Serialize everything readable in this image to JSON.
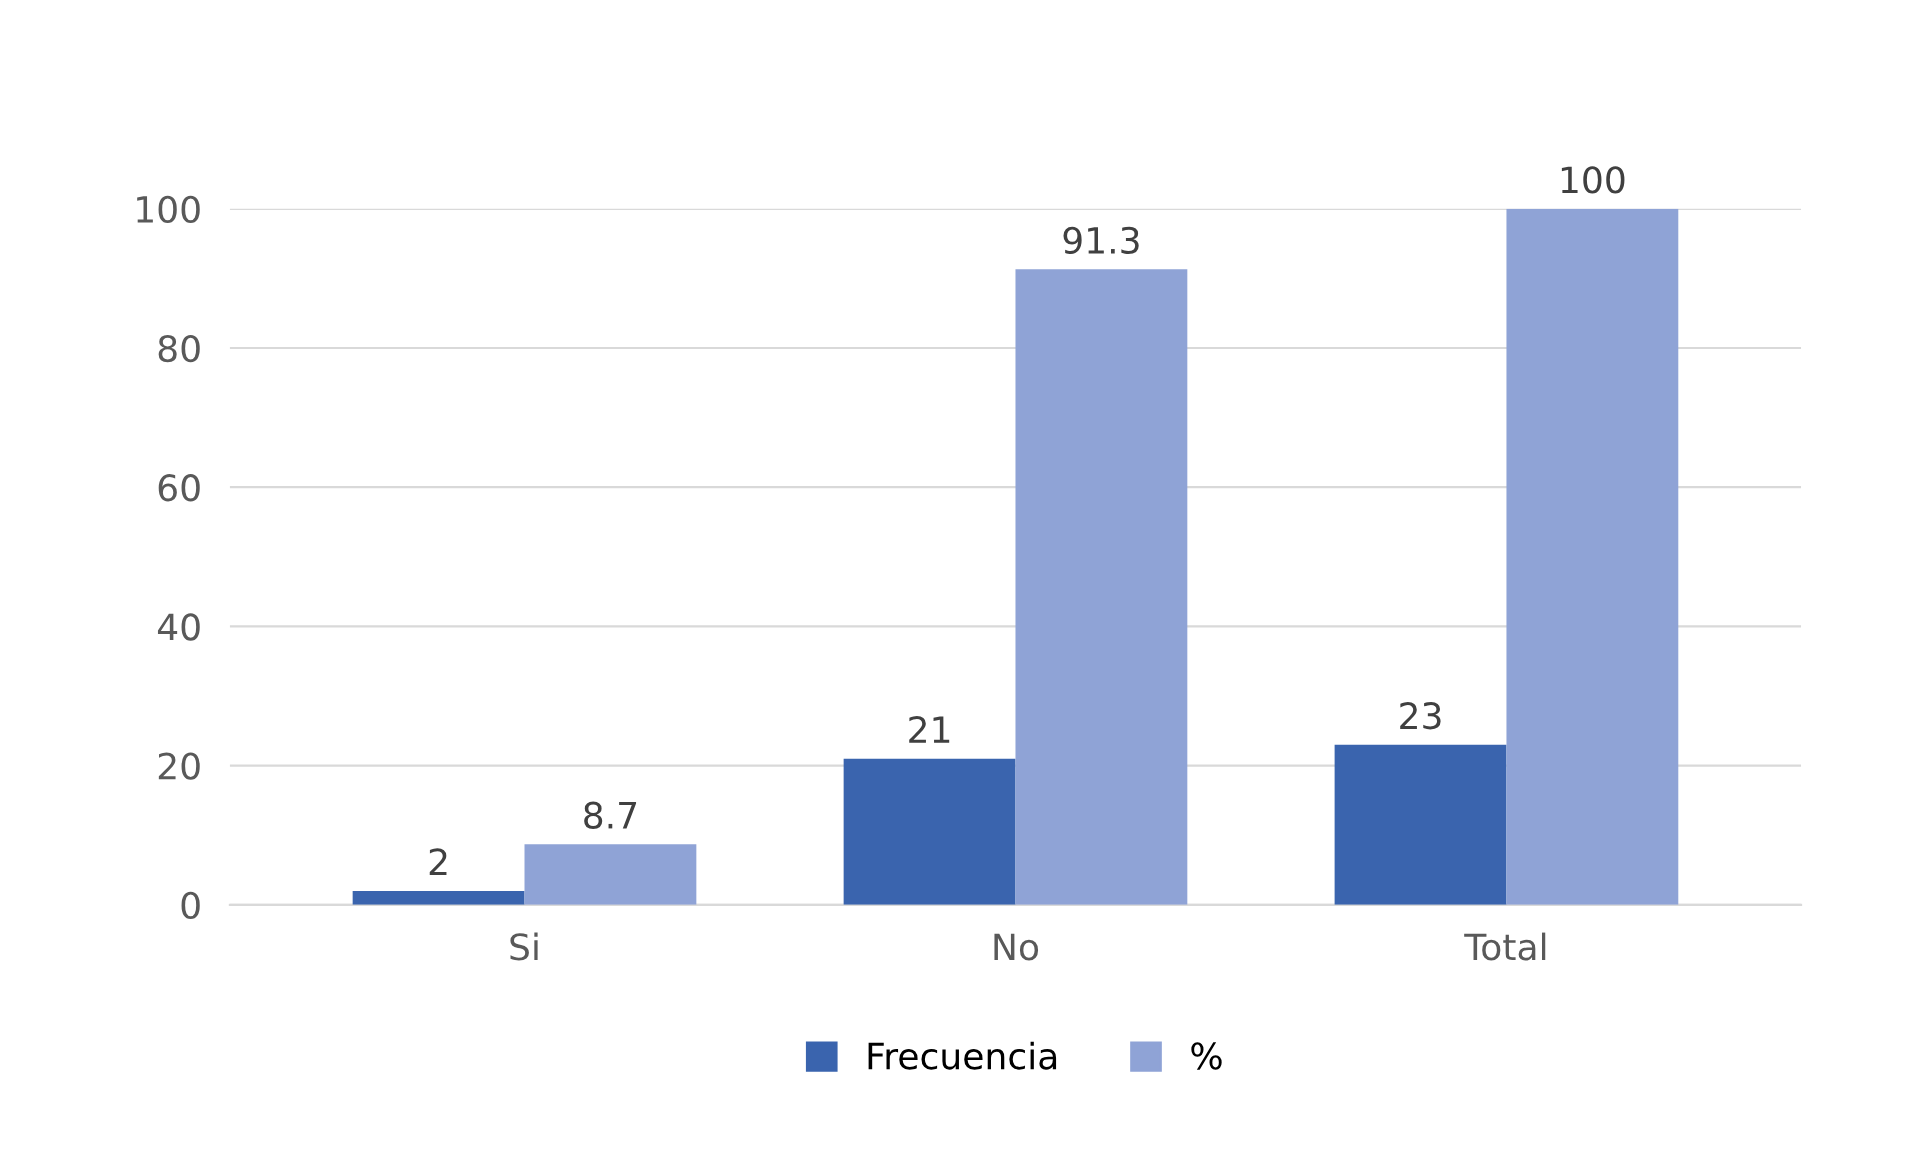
{
  "chart_data": {
    "type": "bar",
    "categories": [
      "Si",
      "No",
      "Total"
    ],
    "series": [
      {
        "name": "Frecuencia",
        "color": "#3a64ae",
        "values": [
          2,
          21,
          23
        ]
      },
      {
        "name": "%",
        "color": "#8fa3d6",
        "values": [
          8.7,
          91.3,
          100
        ]
      }
    ],
    "ylim": [
      0,
      100
    ],
    "yticks": [
      0,
      20,
      40,
      60,
      80,
      100
    ],
    "grid": "y",
    "legend": "bottom",
    "data_labels": true
  }
}
